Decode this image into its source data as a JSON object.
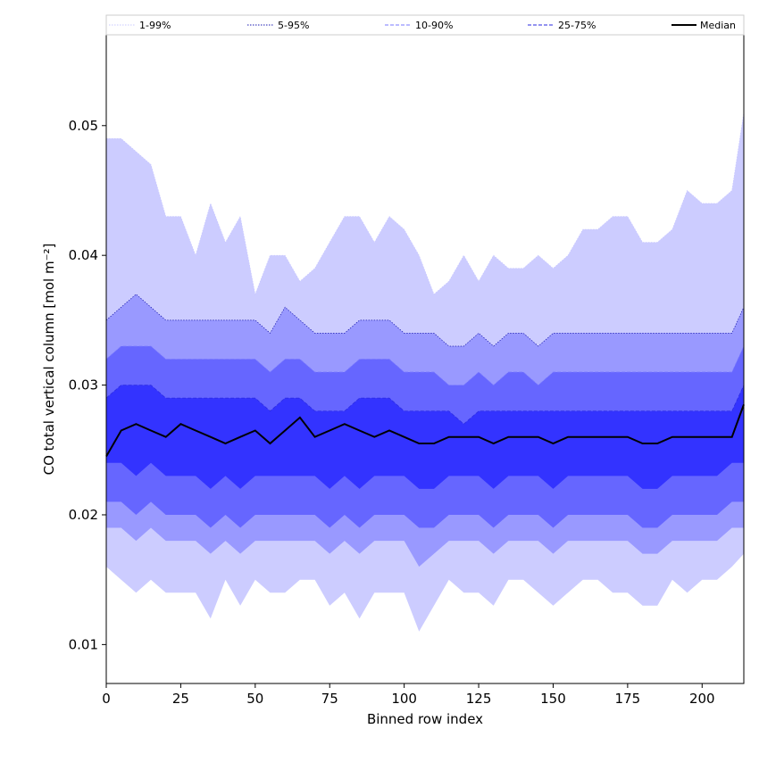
{
  "chart_data": {
    "type": "area",
    "title": "",
    "xlabel": "Binned row index",
    "ylabel": "CO total vertical column [mol m⁻²]",
    "xlim": [
      0,
      214
    ],
    "ylim": [
      0.007,
      0.057
    ],
    "x_ticks": [
      0,
      25,
      50,
      75,
      100,
      125,
      150,
      175,
      200
    ],
    "y_ticks": [
      0.01,
      0.02,
      0.03,
      0.04,
      0.05
    ],
    "y_tick_labels": [
      "0.01",
      "0.02",
      "0.03",
      "0.04",
      "0.05"
    ],
    "legend_position": "top",
    "legend": [
      {
        "label": "1-99%",
        "style": "dotted",
        "color": "#c8c8ff"
      },
      {
        "label": "5-95%",
        "style": "dotted",
        "color": "#1a1ab0"
      },
      {
        "label": "10-90%",
        "style": "dashed",
        "color": "#7a7aff"
      },
      {
        "label": "25-75%",
        "style": "dashed",
        "color": "#2a2ae0"
      },
      {
        "label": "Median",
        "style": "solid",
        "color": "#000000"
      }
    ],
    "x_step": 5,
    "bands": [
      {
        "name": "1-99%",
        "fill": "#ccccff",
        "upper": [
          0.049,
          0.049,
          0.048,
          0.047,
          0.043,
          0.043,
          0.04,
          0.044,
          0.041,
          0.043,
          0.037,
          0.04,
          0.04,
          0.038,
          0.039,
          0.041,
          0.043,
          0.043,
          0.041,
          0.043,
          0.042,
          0.04,
          0.037,
          0.038,
          0.04,
          0.038,
          0.04,
          0.039,
          0.039,
          0.04,
          0.039,
          0.04,
          0.042,
          0.042,
          0.043,
          0.043,
          0.041,
          0.041,
          0.042,
          0.045,
          0.044,
          0.044,
          0.045,
          0.051
        ],
        "lower": [
          0.016,
          0.015,
          0.014,
          0.015,
          0.014,
          0.014,
          0.014,
          0.012,
          0.015,
          0.013,
          0.015,
          0.014,
          0.014,
          0.015,
          0.015,
          0.013,
          0.014,
          0.012,
          0.014,
          0.014,
          0.014,
          0.011,
          0.013,
          0.015,
          0.014,
          0.014,
          0.013,
          0.015,
          0.015,
          0.014,
          0.013,
          0.014,
          0.015,
          0.015,
          0.014,
          0.014,
          0.013,
          0.013,
          0.015,
          0.014,
          0.015,
          0.015,
          0.016,
          0.017
        ]
      },
      {
        "name": "5-95%",
        "fill": "#9999ff",
        "upper": [
          0.035,
          0.036,
          0.037,
          0.036,
          0.035,
          0.035,
          0.035,
          0.035,
          0.035,
          0.035,
          0.035,
          0.034,
          0.036,
          0.035,
          0.034,
          0.034,
          0.034,
          0.035,
          0.035,
          0.035,
          0.034,
          0.034,
          0.034,
          0.033,
          0.033,
          0.034,
          0.033,
          0.034,
          0.034,
          0.033,
          0.034,
          0.034,
          0.034,
          0.034,
          0.034,
          0.034,
          0.034,
          0.034,
          0.034,
          0.034,
          0.034,
          0.034,
          0.034,
          0.036
        ],
        "lower": [
          0.019,
          0.019,
          0.018,
          0.019,
          0.018,
          0.018,
          0.018,
          0.017,
          0.018,
          0.017,
          0.018,
          0.018,
          0.018,
          0.018,
          0.018,
          0.017,
          0.018,
          0.017,
          0.018,
          0.018,
          0.018,
          0.016,
          0.017,
          0.018,
          0.018,
          0.018,
          0.017,
          0.018,
          0.018,
          0.018,
          0.017,
          0.018,
          0.018,
          0.018,
          0.018,
          0.018,
          0.017,
          0.017,
          0.018,
          0.018,
          0.018,
          0.018,
          0.019,
          0.019
        ]
      },
      {
        "name": "10-90%",
        "fill": "#6666ff",
        "upper": [
          0.032,
          0.033,
          0.033,
          0.033,
          0.032,
          0.032,
          0.032,
          0.032,
          0.032,
          0.032,
          0.032,
          0.031,
          0.032,
          0.032,
          0.031,
          0.031,
          0.031,
          0.032,
          0.032,
          0.032,
          0.031,
          0.031,
          0.031,
          0.03,
          0.03,
          0.031,
          0.03,
          0.031,
          0.031,
          0.03,
          0.031,
          0.031,
          0.031,
          0.031,
          0.031,
          0.031,
          0.031,
          0.031,
          0.031,
          0.031,
          0.031,
          0.031,
          0.031,
          0.033
        ],
        "lower": [
          0.021,
          0.021,
          0.02,
          0.021,
          0.02,
          0.02,
          0.02,
          0.019,
          0.02,
          0.019,
          0.02,
          0.02,
          0.02,
          0.02,
          0.02,
          0.019,
          0.02,
          0.019,
          0.02,
          0.02,
          0.02,
          0.019,
          0.019,
          0.02,
          0.02,
          0.02,
          0.019,
          0.02,
          0.02,
          0.02,
          0.019,
          0.02,
          0.02,
          0.02,
          0.02,
          0.02,
          0.019,
          0.019,
          0.02,
          0.02,
          0.02,
          0.02,
          0.021,
          0.021
        ]
      },
      {
        "name": "25-75%",
        "fill": "#3333ff",
        "upper": [
          0.029,
          0.03,
          0.03,
          0.03,
          0.029,
          0.029,
          0.029,
          0.029,
          0.029,
          0.029,
          0.029,
          0.028,
          0.029,
          0.029,
          0.028,
          0.028,
          0.028,
          0.029,
          0.029,
          0.029,
          0.028,
          0.028,
          0.028,
          0.028,
          0.027,
          0.028,
          0.028,
          0.028,
          0.028,
          0.028,
          0.028,
          0.028,
          0.028,
          0.028,
          0.028,
          0.028,
          0.028,
          0.028,
          0.028,
          0.028,
          0.028,
          0.028,
          0.028,
          0.03
        ],
        "lower": [
          0.024,
          0.024,
          0.023,
          0.024,
          0.023,
          0.023,
          0.023,
          0.022,
          0.023,
          0.022,
          0.023,
          0.023,
          0.023,
          0.023,
          0.023,
          0.022,
          0.023,
          0.022,
          0.023,
          0.023,
          0.023,
          0.022,
          0.022,
          0.023,
          0.023,
          0.023,
          0.022,
          0.023,
          0.023,
          0.023,
          0.022,
          0.023,
          0.023,
          0.023,
          0.023,
          0.023,
          0.022,
          0.022,
          0.023,
          0.023,
          0.023,
          0.023,
          0.024,
          0.024
        ]
      }
    ],
    "median": [
      0.0245,
      0.0265,
      0.027,
      0.0265,
      0.026,
      0.027,
      0.0265,
      0.026,
      0.0255,
      0.026,
      0.0265,
      0.0255,
      0.0265,
      0.0275,
      0.026,
      0.0265,
      0.027,
      0.0265,
      0.026,
      0.0265,
      0.026,
      0.0255,
      0.0255,
      0.026,
      0.026,
      0.026,
      0.0255,
      0.026,
      0.026,
      0.026,
      0.0255,
      0.026,
      0.026,
      0.026,
      0.026,
      0.026,
      0.0255,
      0.0255,
      0.026,
      0.026,
      0.026,
      0.026,
      0.026,
      0.0285
    ]
  }
}
